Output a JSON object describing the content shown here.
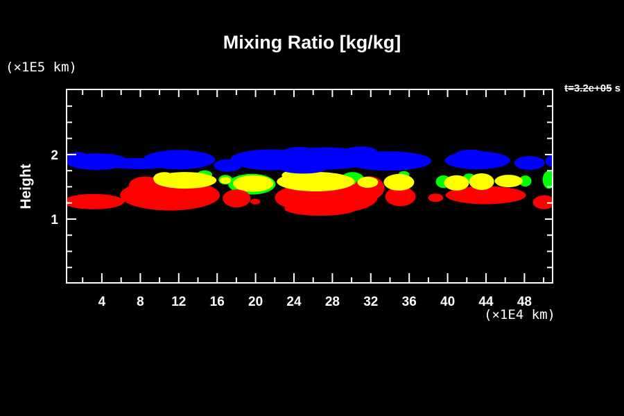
{
  "title": "Mixing Ratio [kg/kg]",
  "y_axis": {
    "label": "Height",
    "unit": "(×1E5 km)"
  },
  "x_axis": {
    "unit": "(×1E4 km)"
  },
  "time_label": {
    "value": "t=3.2e+05",
    "unit": " s"
  },
  "colors": {
    "background": "#000000",
    "frame": "#ffffff",
    "text": "#ffffff",
    "level_blue": "#0000ff",
    "level_green": "#00ff00",
    "level_yellow": "#ffff00",
    "level_red": "#ff0000"
  },
  "chart_data": {
    "type": "filled-contour",
    "title": "Mixing Ratio [kg/kg]",
    "xlabel": "(×1E4 km)",
    "ylabel": "Height (×1E5 km)",
    "time_annotation": "t=3.2e+05 s",
    "x_range": [
      0.25,
      51.0
    ],
    "y_range": [
      0,
      3.02
    ],
    "x_ticks_labeled": [
      4,
      8,
      12,
      16,
      20,
      24,
      28,
      32,
      36,
      40,
      44,
      48
    ],
    "x_tick_minor_step": 2,
    "y_ticks_labeled": [
      1,
      2
    ],
    "y_tick_minor_step": 0.25,
    "grid": false,
    "legend": false,
    "regions": [
      {
        "name": "cloud-level-green",
        "color": "#00ff00",
        "blobs": [
          [
            19.62,
            1.54,
            2.46,
            0.16
          ],
          [
            30.09,
            1.59,
            1.3,
            0.14
          ],
          [
            14.7,
            1.69,
            0.79,
            0.065
          ],
          [
            39.56,
            1.58,
            0.79,
            0.097
          ],
          [
            42.23,
            1.63,
            0.65,
            0.075
          ],
          [
            48.08,
            1.59,
            0.65,
            0.086
          ],
          [
            50.54,
            1.61,
            0.65,
            0.14
          ],
          [
            35.44,
            1.69,
            0.58,
            0.054
          ],
          [
            16.87,
            1.61,
            0.72,
            0.075
          ]
        ]
      },
      {
        "name": "cloud-level-red",
        "color": "#ff0000",
        "blobs": [
          [
            3.14,
            1.27,
            3.2,
            0.118
          ],
          [
            7.47,
            1.3,
            1.3,
            0.054
          ],
          [
            11.09,
            1.37,
            5.2,
            0.237
          ],
          [
            8.56,
            1.53,
            1.73,
            0.129
          ],
          [
            18.03,
            1.32,
            1.45,
            0.14
          ],
          [
            19.98,
            1.27,
            0.51,
            0.043
          ],
          [
            27.35,
            1.33,
            5.35,
            0.247
          ],
          [
            31.83,
            1.48,
            1.59,
            0.183
          ],
          [
            26.77,
            1.16,
            3.76,
            0.108
          ],
          [
            35.08,
            1.35,
            1.59,
            0.151
          ],
          [
            38.76,
            1.33,
            0.79,
            0.065
          ],
          [
            43.97,
            1.37,
            4.19,
            0.14
          ],
          [
            50.04,
            1.26,
            1.16,
            0.108
          ]
        ]
      },
      {
        "name": "cloud-level-yellow",
        "color": "#ffff00",
        "blobs": [
          [
            12.68,
            1.6,
            3.25,
            0.129
          ],
          [
            10.51,
            1.63,
            1.16,
            0.097
          ],
          [
            16.87,
            1.6,
            0.58,
            0.054
          ],
          [
            19.76,
            1.55,
            2.1,
            0.129
          ],
          [
            26.26,
            1.58,
            4.05,
            0.151
          ],
          [
            24.46,
            1.68,
            1.73,
            0.086
          ],
          [
            31.68,
            1.57,
            1.08,
            0.086
          ],
          [
            34.93,
            1.57,
            1.59,
            0.129
          ],
          [
            40.93,
            1.56,
            1.3,
            0.118
          ],
          [
            43.54,
            1.58,
            1.3,
            0.129
          ],
          [
            46.35,
            1.59,
            1.45,
            0.097
          ]
        ]
      },
      {
        "name": "cloud-level-blue",
        "color": "#0000ff",
        "blobs": [
          [
            3.5,
            1.89,
            3.25,
            0.13
          ],
          [
            1.48,
            1.92,
            1.3,
            0.12
          ],
          [
            7.84,
            1.86,
            3.61,
            0.086
          ],
          [
            12.03,
            1.92,
            3.76,
            0.15
          ],
          [
            17.09,
            1.83,
            1.45,
            0.097
          ],
          [
            21.57,
            1.92,
            4.19,
            0.161
          ],
          [
            27.35,
            1.94,
            5.06,
            0.172
          ],
          [
            33.85,
            1.9,
            4.48,
            0.151
          ],
          [
            24.6,
            2.02,
            2.02,
            0.097
          ],
          [
            30.96,
            2.04,
            1.73,
            0.086
          ],
          [
            24.96,
            1.78,
            2.38,
            0.075
          ],
          [
            43.1,
            1.91,
            3.4,
            0.14
          ],
          [
            42.38,
            2.0,
            1.59,
            0.075
          ],
          [
            48.52,
            1.87,
            1.59,
            0.108
          ],
          [
            50.83,
            1.9,
            0.65,
            0.086
          ]
        ]
      }
    ]
  }
}
